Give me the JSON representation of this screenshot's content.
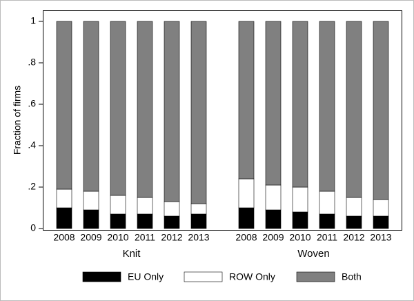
{
  "chart_data": {
    "type": "stacked-bar",
    "y_label": "Fraction of firms",
    "groups": [
      {
        "label": "Knit",
        "categories": [
          "2008",
          "2009",
          "2010",
          "2011",
          "2012",
          "2013"
        ]
      },
      {
        "label": "Woven",
        "categories": [
          "2008",
          "2009",
          "2010",
          "2011",
          "2012",
          "2013"
        ]
      }
    ],
    "series": [
      {
        "name": "EU Only",
        "color": "#000000",
        "values": [
          [
            0.1,
            0.09,
            0.07,
            0.07,
            0.06,
            0.07
          ],
          [
            0.1,
            0.09,
            0.08,
            0.07,
            0.06,
            0.06
          ]
        ]
      },
      {
        "name": "ROW Only",
        "color": "#ffffff",
        "values": [
          [
            0.09,
            0.09,
            0.09,
            0.08,
            0.07,
            0.05
          ],
          [
            0.14,
            0.12,
            0.12,
            0.11,
            0.09,
            0.08
          ]
        ]
      },
      {
        "name": "Both",
        "color": "#808080",
        "values": [
          [
            0.81,
            0.82,
            0.84,
            0.85,
            0.87,
            0.88
          ],
          [
            0.76,
            0.79,
            0.8,
            0.82,
            0.85,
            0.86
          ]
        ]
      }
    ],
    "ylim": [
      0,
      1.1
    ],
    "yticks": [
      0,
      {
        "value": 0.2,
        "label": ".2"
      },
      {
        "value": 0.4,
        "label": ".4"
      },
      {
        "value": 0.6,
        "label": ".6"
      },
      {
        "value": 0.8,
        "label": ".8"
      },
      1
    ]
  }
}
